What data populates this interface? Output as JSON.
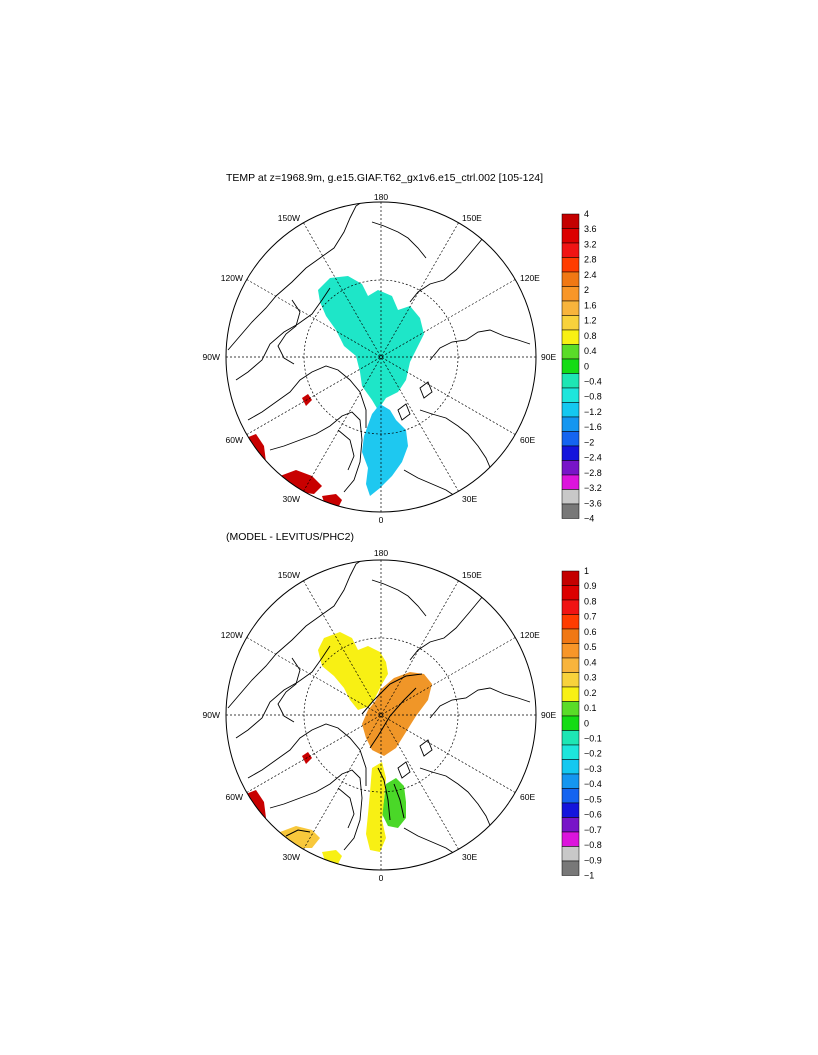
{
  "panels": [
    {
      "title": "TEMP at z=1968.9m, g.e15.GIAF.T62_gx1v6.e15_ctrl.002 [105-124]",
      "colorbar": {
        "labels": [
          "4",
          "3.6",
          "3.2",
          "2.8",
          "2.4",
          "2",
          "1.6",
          "1.2",
          "0.8",
          "0.4",
          "0",
          "−0.4",
          "−0.8",
          "−1.2",
          "−1.6",
          "−2",
          "−2.4",
          "−2.8",
          "−3.2",
          "−3.6",
          "−4"
        ],
        "colors": [
          "#c40000",
          "#dc0000",
          "#f01414",
          "#ff3c00",
          "#f07814",
          "#f89628",
          "#f8b43c",
          "#f8d23c",
          "#f8f014",
          "#5adc28",
          "#14dc14",
          "#1ee6b4",
          "#1ee6dc",
          "#14c8f0",
          "#1496f0",
          "#1464f0",
          "#1414dc",
          "#7814c8",
          "#dc14dc",
          "#c8c8c8",
          "#787878"
        ]
      },
      "fields": [
        {
          "name": "arctic-basin",
          "value": "-0.4 to 0",
          "color": "#1ee6c8"
        },
        {
          "name": "fram-strait-greenland-sea",
          "value": "-1.2 to -0.8",
          "color": "#1ec8f0"
        },
        {
          "name": "labrador-sea",
          "value": "> 3.6",
          "color": "#c80000"
        },
        {
          "name": "irminger-sea",
          "value": "> 3.6",
          "color": "#c80000"
        },
        {
          "name": "iceland-basin",
          "value": "> 3.6",
          "color": "#c80000"
        },
        {
          "name": "baffin-bay",
          "value": "> 3.6",
          "color": "#c80000"
        }
      ]
    },
    {
      "title": "(MODEL - LEVITUS/PHC2)",
      "colorbar": {
        "labels": [
          "1",
          "0.9",
          "0.8",
          "0.7",
          "0.6",
          "0.5",
          "0.4",
          "0.3",
          "0.2",
          "0.1",
          "0",
          "−0.1",
          "−0.2",
          "−0.3",
          "−0.4",
          "−0.5",
          "−0.6",
          "−0.7",
          "−0.8",
          "−0.9",
          "−1"
        ],
        "colors": [
          "#c40000",
          "#dc0000",
          "#f01414",
          "#ff3c00",
          "#f07814",
          "#f89628",
          "#f8b43c",
          "#f8d23c",
          "#f8f014",
          "#5adc28",
          "#14dc14",
          "#1ee6b4",
          "#1ee6dc",
          "#14c8f0",
          "#1496f0",
          "#1464f0",
          "#1414dc",
          "#7814c8",
          "#dc14dc",
          "#c8c8c8",
          "#787878"
        ]
      },
      "fields": [
        {
          "name": "canada-basin",
          "value": "0.2 to 0.3",
          "color": "#f8f014"
        },
        {
          "name": "eurasian-basin",
          "value": "0.5 to 0.6",
          "color": "#f09628"
        },
        {
          "name": "greenland-sea",
          "value": "0.1 to 0.2",
          "color": "#4ad828"
        },
        {
          "name": "norwegian-sea",
          "value": "0.2 to 0.3",
          "color": "#f8f014"
        },
        {
          "name": "labrador-sea",
          "value": "> 0.9",
          "color": "#c80000"
        },
        {
          "name": "irminger-sea",
          "value": "0.3 to 0.6",
          "color": "#f8c83c"
        },
        {
          "name": "baffin-bay",
          "value": "> 0.9",
          "color": "#c80000"
        }
      ]
    }
  ],
  "map_labels": {
    "lon_180": "180",
    "lon_150w": "150W",
    "lon_150e": "150E",
    "lon_120w": "120W",
    "lon_120e": "120E",
    "lon_90w": "90W",
    "lon_90e": "90E",
    "lon_60w": "60W",
    "lon_60e": "60E",
    "lon_30w": "30W",
    "lon_30e": "30E",
    "lon_0": "0"
  }
}
